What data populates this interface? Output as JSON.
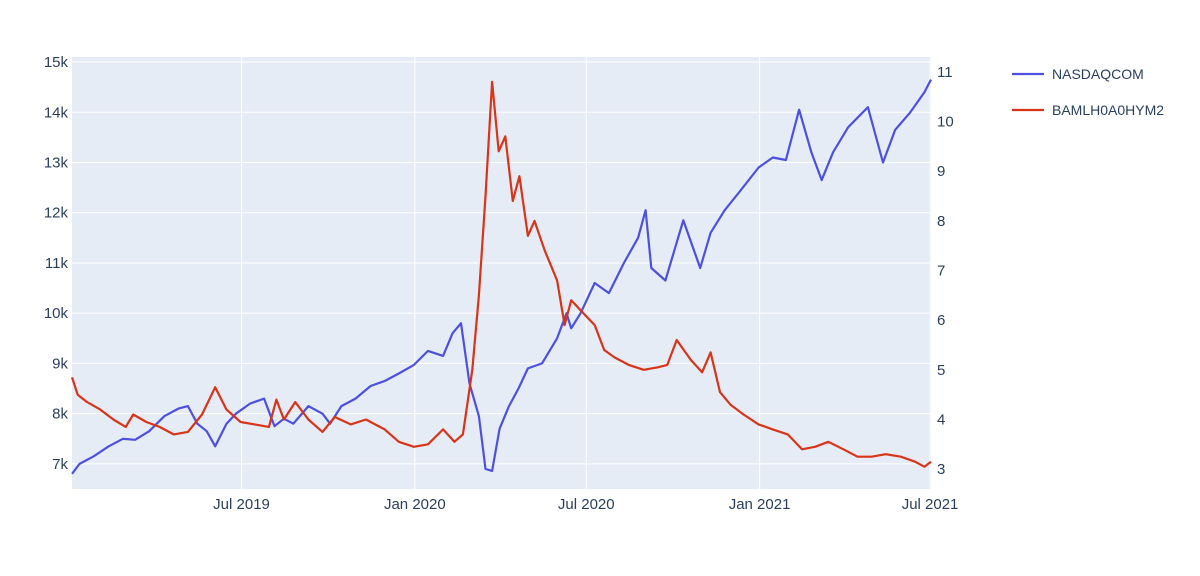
{
  "colors": {
    "plot_bg": "#e5ecf6",
    "grid": "#ffffff",
    "nasdaq": "#4c50e0",
    "hy": "#d93318",
    "text": "#2a3f5f"
  },
  "chart_data": {
    "type": "line",
    "x_range": [
      "2019-01-02",
      "2021-07-02"
    ],
    "x_ticks": [
      {
        "date": "2019-07-01",
        "label": "Jul 2019"
      },
      {
        "date": "2020-01-01",
        "label": "Jan 2020"
      },
      {
        "date": "2020-07-01",
        "label": "Jul 2020"
      },
      {
        "date": "2021-01-01",
        "label": "Jan 2021"
      },
      {
        "date": "2021-07-01",
        "label": "Jul 2021"
      }
    ],
    "y_left": {
      "range": [
        6500,
        15100
      ],
      "ticks": [
        7000,
        8000,
        9000,
        10000,
        11000,
        12000,
        13000,
        14000,
        15000
      ],
      "tick_labels": [
        "7k",
        "8k",
        "9k",
        "10k",
        "11k",
        "12k",
        "13k",
        "14k",
        "15k"
      ]
    },
    "y_right": {
      "range": [
        2.6,
        11.3
      ],
      "ticks": [
        3,
        4,
        5,
        6,
        7,
        8,
        9,
        10,
        11
      ],
      "tick_labels": [
        "3",
        "4",
        "5",
        "6",
        "7",
        "8",
        "9",
        "10",
        "11"
      ]
    },
    "grid": true,
    "legend_position": "top-right",
    "series": [
      {
        "name": "NASDAQCOM",
        "axis": "left",
        "color": "#4c50e0",
        "points": [
          [
            "2019-01-02",
            6800
          ],
          [
            "2019-01-10",
            7000
          ],
          [
            "2019-01-25",
            7150
          ],
          [
            "2019-02-10",
            7350
          ],
          [
            "2019-02-25",
            7500
          ],
          [
            "2019-03-10",
            7480
          ],
          [
            "2019-03-25",
            7650
          ],
          [
            "2019-04-10",
            7950
          ],
          [
            "2019-04-25",
            8100
          ],
          [
            "2019-05-05",
            8150
          ],
          [
            "2019-05-15",
            7800
          ],
          [
            "2019-05-25",
            7650
          ],
          [
            "2019-06-03",
            7350
          ],
          [
            "2019-06-15",
            7800
          ],
          [
            "2019-06-25",
            8000
          ],
          [
            "2019-07-10",
            8200
          ],
          [
            "2019-07-25",
            8300
          ],
          [
            "2019-08-05",
            7750
          ],
          [
            "2019-08-15",
            7900
          ],
          [
            "2019-08-25",
            7800
          ],
          [
            "2019-09-10",
            8150
          ],
          [
            "2019-09-25",
            8000
          ],
          [
            "2019-10-03",
            7800
          ],
          [
            "2019-10-15",
            8150
          ],
          [
            "2019-10-30",
            8300
          ],
          [
            "2019-11-15",
            8550
          ],
          [
            "2019-11-30",
            8650
          ],
          [
            "2019-12-15",
            8800
          ],
          [
            "2019-12-31",
            8970
          ],
          [
            "2020-01-15",
            9250
          ],
          [
            "2020-01-31",
            9150
          ],
          [
            "2020-02-10",
            9600
          ],
          [
            "2020-02-19",
            9800
          ],
          [
            "2020-02-28",
            8600
          ],
          [
            "2020-03-09",
            7950
          ],
          [
            "2020-03-16",
            6900
          ],
          [
            "2020-03-23",
            6860
          ],
          [
            "2020-03-31",
            7700
          ],
          [
            "2020-04-10",
            8150
          ],
          [
            "2020-04-20",
            8500
          ],
          [
            "2020-04-30",
            8900
          ],
          [
            "2020-05-15",
            9000
          ],
          [
            "2020-05-31",
            9500
          ],
          [
            "2020-06-10",
            10000
          ],
          [
            "2020-06-15",
            9700
          ],
          [
            "2020-06-25",
            10000
          ],
          [
            "2020-07-10",
            10600
          ],
          [
            "2020-07-25",
            10400
          ],
          [
            "2020-08-10",
            11000
          ],
          [
            "2020-08-25",
            11500
          ],
          [
            "2020-09-02",
            12050
          ],
          [
            "2020-09-08",
            10900
          ],
          [
            "2020-09-23",
            10650
          ],
          [
            "2020-10-12",
            11850
          ],
          [
            "2020-10-30",
            10900
          ],
          [
            "2020-11-10",
            11600
          ],
          [
            "2020-11-25",
            12050
          ],
          [
            "2020-12-10",
            12400
          ],
          [
            "2020-12-31",
            12900
          ],
          [
            "2021-01-15",
            13100
          ],
          [
            "2021-01-29",
            13050
          ],
          [
            "2021-02-12",
            14050
          ],
          [
            "2021-02-25",
            13200
          ],
          [
            "2021-03-08",
            12650
          ],
          [
            "2021-03-20",
            13200
          ],
          [
            "2021-04-05",
            13700
          ],
          [
            "2021-04-26",
            14100
          ],
          [
            "2021-05-12",
            13000
          ],
          [
            "2021-05-25",
            13650
          ],
          [
            "2021-06-10",
            14000
          ],
          [
            "2021-06-25",
            14400
          ],
          [
            "2021-07-02",
            14650
          ]
        ]
      },
      {
        "name": "BAMLH0A0HYM2",
        "axis": "right",
        "color": "#d93318",
        "points": [
          [
            "2019-01-02",
            4.85
          ],
          [
            "2019-01-08",
            4.5
          ],
          [
            "2019-01-18",
            4.35
          ],
          [
            "2019-02-01",
            4.2
          ],
          [
            "2019-02-15",
            4.0
          ],
          [
            "2019-02-28",
            3.85
          ],
          [
            "2019-03-08",
            4.1
          ],
          [
            "2019-03-22",
            3.95
          ],
          [
            "2019-04-05",
            3.85
          ],
          [
            "2019-04-20",
            3.7
          ],
          [
            "2019-05-05",
            3.75
          ],
          [
            "2019-05-20",
            4.1
          ],
          [
            "2019-06-03",
            4.65
          ],
          [
            "2019-06-15",
            4.2
          ],
          [
            "2019-06-30",
            3.95
          ],
          [
            "2019-07-15",
            3.9
          ],
          [
            "2019-07-30",
            3.85
          ],
          [
            "2019-08-07",
            4.4
          ],
          [
            "2019-08-15",
            4.0
          ],
          [
            "2019-08-27",
            4.35
          ],
          [
            "2019-09-10",
            4.0
          ],
          [
            "2019-09-25",
            3.75
          ],
          [
            "2019-10-08",
            4.05
          ],
          [
            "2019-10-25",
            3.9
          ],
          [
            "2019-11-10",
            4.0
          ],
          [
            "2019-11-30",
            3.8
          ],
          [
            "2019-12-15",
            3.55
          ],
          [
            "2019-12-31",
            3.45
          ],
          [
            "2020-01-15",
            3.5
          ],
          [
            "2020-01-31",
            3.8
          ],
          [
            "2020-02-12",
            3.55
          ],
          [
            "2020-02-21",
            3.7
          ],
          [
            "2020-03-02",
            5.0
          ],
          [
            "2020-03-09",
            6.5
          ],
          [
            "2020-03-16",
            8.5
          ],
          [
            "2020-03-23",
            10.8
          ],
          [
            "2020-03-30",
            9.4
          ],
          [
            "2020-04-06",
            9.7
          ],
          [
            "2020-04-14",
            8.4
          ],
          [
            "2020-04-21",
            8.9
          ],
          [
            "2020-04-30",
            7.7
          ],
          [
            "2020-05-07",
            8.0
          ],
          [
            "2020-05-18",
            7.4
          ],
          [
            "2020-05-31",
            6.8
          ],
          [
            "2020-06-08",
            5.9
          ],
          [
            "2020-06-15",
            6.4
          ],
          [
            "2020-06-30",
            6.1
          ],
          [
            "2020-07-10",
            5.9
          ],
          [
            "2020-07-20",
            5.4
          ],
          [
            "2020-07-31",
            5.25
          ],
          [
            "2020-08-15",
            5.1
          ],
          [
            "2020-08-31",
            5.0
          ],
          [
            "2020-09-15",
            5.05
          ],
          [
            "2020-09-25",
            5.1
          ],
          [
            "2020-10-05",
            5.6
          ],
          [
            "2020-10-20",
            5.2
          ],
          [
            "2020-11-01",
            4.95
          ],
          [
            "2020-11-10",
            5.35
          ],
          [
            "2020-11-20",
            4.55
          ],
          [
            "2020-12-01",
            4.3
          ],
          [
            "2020-12-15",
            4.1
          ],
          [
            "2020-12-31",
            3.9
          ],
          [
            "2021-01-15",
            3.8
          ],
          [
            "2021-01-31",
            3.7
          ],
          [
            "2021-02-15",
            3.4
          ],
          [
            "2021-03-01",
            3.45
          ],
          [
            "2021-03-15",
            3.55
          ],
          [
            "2021-03-31",
            3.4
          ],
          [
            "2021-04-15",
            3.25
          ],
          [
            "2021-04-30",
            3.25
          ],
          [
            "2021-05-15",
            3.3
          ],
          [
            "2021-05-31",
            3.25
          ],
          [
            "2021-06-15",
            3.15
          ],
          [
            "2021-06-25",
            3.05
          ],
          [
            "2021-07-02",
            3.15
          ]
        ]
      }
    ]
  }
}
